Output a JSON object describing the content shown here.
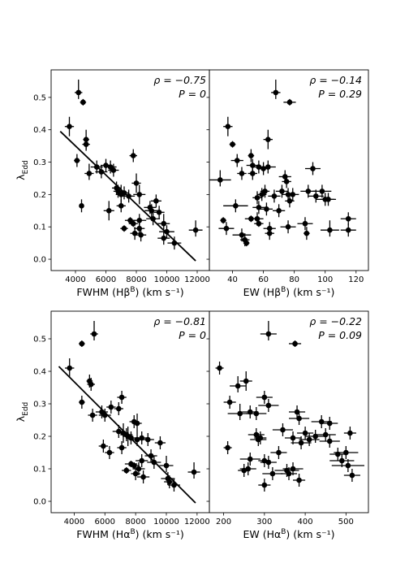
{
  "ylabel": "λ_Edd",
  "chart_data": [
    {
      "type": "scatter",
      "panel": "top-left",
      "xlabel": "FWHM (Hβ^B) (km s⁻¹)",
      "ylabel": "λ_Edd",
      "xlim": [
        2400,
        12800
      ],
      "ylim": [
        -0.035,
        0.585
      ],
      "xticks": [
        4000,
        6000,
        8000,
        10000,
        12000
      ],
      "yticks": [
        0.0,
        0.1,
        0.2,
        0.3,
        0.4,
        0.5
      ],
      "annotation": [
        "ρ = −0.75",
        "P = 0"
      ],
      "fit_line": [
        [
          3000,
          0.395
        ],
        [
          11900,
          -0.005
        ]
      ],
      "points": [
        [
          4200,
          0.515,
          250,
          0.02,
          0.04
        ],
        [
          4500,
          0.485,
          200,
          0.01,
          0.01
        ],
        [
          3600,
          0.41,
          300,
          0.03,
          0.03
        ],
        [
          4100,
          0.305,
          200,
          0.02,
          0.02
        ],
        [
          4700,
          0.37,
          200,
          0.03,
          0.03
        ],
        [
          4700,
          0.355,
          250,
          0.02,
          0.02
        ],
        [
          4900,
          0.265,
          300,
          0.02,
          0.03
        ],
        [
          4400,
          0.165,
          150,
          0.02,
          0.02
        ],
        [
          5400,
          0.285,
          400,
          0.02,
          0.02
        ],
        [
          5700,
          0.27,
          400,
          0.02,
          0.02
        ],
        [
          6000,
          0.29,
          350,
          0.02,
          0.02
        ],
        [
          6300,
          0.285,
          400,
          0.02,
          0.02
        ],
        [
          6500,
          0.275,
          350,
          0.02,
          0.02
        ],
        [
          6200,
          0.15,
          350,
          0.03,
          0.03
        ],
        [
          6700,
          0.22,
          300,
          0.02,
          0.02
        ],
        [
          6800,
          0.21,
          300,
          0.02,
          0.02
        ],
        [
          7000,
          0.2,
          350,
          0.03,
          0.03
        ],
        [
          7200,
          0.205,
          300,
          0.02,
          0.02
        ],
        [
          7500,
          0.195,
          400,
          0.02,
          0.02
        ],
        [
          7800,
          0.32,
          250,
          0.02,
          0.02
        ],
        [
          8000,
          0.235,
          300,
          0.03,
          0.03
        ],
        [
          8200,
          0.2,
          400,
          0.03,
          0.03
        ],
        [
          7000,
          0.165,
          300,
          0.02,
          0.02
        ],
        [
          7200,
          0.095,
          250,
          0.01,
          0.01
        ],
        [
          7600,
          0.12,
          350,
          0.01,
          0.01
        ],
        [
          7800,
          0.11,
          300,
          0.01,
          0.01
        ],
        [
          7900,
          0.08,
          300,
          0.02,
          0.02
        ],
        [
          8200,
          0.12,
          450,
          0.02,
          0.02
        ],
        [
          8200,
          0.095,
          350,
          0.02,
          0.02
        ],
        [
          8300,
          0.075,
          350,
          0.02,
          0.02
        ],
        [
          8900,
          0.16,
          400,
          0.02,
          0.02
        ],
        [
          9000,
          0.15,
          450,
          0.02,
          0.02
        ],
        [
          9300,
          0.18,
          350,
          0.02,
          0.02
        ],
        [
          9100,
          0.125,
          450,
          0.02,
          0.02
        ],
        [
          9500,
          0.145,
          350,
          0.02,
          0.02
        ],
        [
          9800,
          0.11,
          400,
          0.02,
          0.03
        ],
        [
          10000,
          0.085,
          500,
          0.02,
          0.02
        ],
        [
          9800,
          0.065,
          400,
          0.02,
          0.02
        ],
        [
          10500,
          0.05,
          450,
          0.02,
          0.02
        ],
        [
          11900,
          0.09,
          450,
          0.02,
          0.03
        ]
      ]
    },
    {
      "type": "scatter",
      "panel": "top-right",
      "xlabel": "EW (Hβ^B) (km s⁻¹)",
      "xlim": [
        25,
        128
      ],
      "ylim": [
        -0.035,
        0.585
      ],
      "xticks": [
        40,
        60,
        80,
        100,
        120
      ],
      "yticks": [
        0.0,
        0.1,
        0.2,
        0.3,
        0.4,
        0.5
      ],
      "annotation": [
        "ρ = −0.14",
        "P = 0.29"
      ],
      "points": [
        [
          68,
          0.515,
          3,
          0.02,
          0.04
        ],
        [
          77,
          0.485,
          4,
          0.01,
          0.01
        ],
        [
          37,
          0.41,
          3,
          0.03,
          0.03
        ],
        [
          40,
          0.355,
          2,
          0.01,
          0.01
        ],
        [
          43,
          0.305,
          4,
          0.02,
          0.02
        ],
        [
          32,
          0.245,
          7,
          0.02,
          0.03
        ],
        [
          46,
          0.265,
          3,
          0.02,
          0.02
        ],
        [
          42,
          0.165,
          8,
          0.02,
          0.02
        ],
        [
          34,
          0.12,
          2,
          0.01,
          0.01
        ],
        [
          36,
          0.095,
          5,
          0.02,
          0.02
        ],
        [
          46,
          0.075,
          6,
          0.02,
          0.02
        ],
        [
          48,
          0.06,
          3,
          0.02,
          0.02
        ],
        [
          49,
          0.05,
          2,
          0.01,
          0.01
        ],
        [
          52,
          0.32,
          2,
          0.02,
          0.02
        ],
        [
          53,
          0.29,
          4,
          0.02,
          0.02
        ],
        [
          53,
          0.265,
          3,
          0.02,
          0.02
        ],
        [
          57,
          0.285,
          4,
          0.02,
          0.02
        ],
        [
          60,
          0.28,
          4,
          0.02,
          0.02
        ],
        [
          63,
          0.285,
          5,
          0.02,
          0.02
        ],
        [
          63,
          0.37,
          3,
          0.03,
          0.03
        ],
        [
          56,
          0.19,
          3,
          0.02,
          0.02
        ],
        [
          57,
          0.16,
          4,
          0.02,
          0.02
        ],
        [
          59,
          0.2,
          3,
          0.02,
          0.02
        ],
        [
          61,
          0.21,
          3,
          0.02,
          0.02
        ],
        [
          62,
          0.155,
          4,
          0.02,
          0.02
        ],
        [
          56,
          0.125,
          4,
          0.02,
          0.02
        ],
        [
          52,
          0.125,
          4,
          0.01,
          0.01
        ],
        [
          57,
          0.11,
          3,
          0.01,
          0.01
        ],
        [
          64,
          0.095,
          4,
          0.02,
          0.02
        ],
        [
          64,
          0.08,
          3,
          0.02,
          0.02
        ],
        [
          67,
          0.195,
          4,
          0.02,
          0.02
        ],
        [
          70,
          0.15,
          4,
          0.02,
          0.02
        ],
        [
          72,
          0.21,
          4,
          0.02,
          0.02
        ],
        [
          74,
          0.255,
          4,
          0.02,
          0.02
        ],
        [
          75,
          0.24,
          3,
          0.02,
          0.02
        ],
        [
          76,
          0.2,
          4,
          0.02,
          0.02
        ],
        [
          77,
          0.18,
          3,
          0.02,
          0.02
        ],
        [
          79,
          0.2,
          4,
          0.02,
          0.02
        ],
        [
          76,
          0.1,
          5,
          0.02,
          0.02
        ],
        [
          87,
          0.11,
          5,
          0.02,
          0.02
        ],
        [
          88,
          0.08,
          2,
          0.02,
          0.02
        ],
        [
          89,
          0.21,
          5,
          0.02,
          0.02
        ],
        [
          92,
          0.28,
          5,
          0.02,
          0.02
        ],
        [
          94,
          0.195,
          5,
          0.02,
          0.02
        ],
        [
          98,
          0.21,
          6,
          0.02,
          0.02
        ],
        [
          100,
          0.185,
          6,
          0.02,
          0.02
        ],
        [
          102,
          0.185,
          5,
          0.02,
          0.02
        ],
        [
          103,
          0.09,
          6,
          0.02,
          0.03
        ],
        [
          115,
          0.125,
          5,
          0.02,
          0.02
        ],
        [
          115,
          0.09,
          5,
          0.02,
          0.02
        ]
      ]
    },
    {
      "type": "scatter",
      "panel": "bottom-left",
      "xlabel": "FWHM (Hα^B) (km s⁻¹)",
      "ylabel": "λ_Edd",
      "xlim": [
        2500,
        12800
      ],
      "ylim": [
        -0.035,
        0.585
      ],
      "xticks": [
        4000,
        6000,
        8000,
        10000,
        12000
      ],
      "yticks": [
        0.0,
        0.1,
        0.2,
        0.3,
        0.4,
        0.5
      ],
      "annotation": [
        "ρ = −0.81",
        "P = 0"
      ],
      "fit_line": [
        [
          3000,
          0.415
        ],
        [
          11900,
          -0.005
        ]
      ],
      "points": [
        [
          4500,
          0.485,
          200,
          0.01,
          0.01
        ],
        [
          5300,
          0.515,
          250,
          0.02,
          0.04
        ],
        [
          3700,
          0.41,
          300,
          0.03,
          0.03
        ],
        [
          4500,
          0.305,
          200,
          0.02,
          0.02
        ],
        [
          5000,
          0.37,
          200,
          0.02,
          0.02
        ],
        [
          5100,
          0.36,
          250,
          0.02,
          0.02
        ],
        [
          5200,
          0.265,
          300,
          0.02,
          0.02
        ],
        [
          5800,
          0.275,
          400,
          0.02,
          0.02
        ],
        [
          6000,
          0.265,
          400,
          0.02,
          0.02
        ],
        [
          6400,
          0.29,
          300,
          0.02,
          0.02
        ],
        [
          6900,
          0.285,
          300,
          0.02,
          0.02
        ],
        [
          7100,
          0.32,
          300,
          0.02,
          0.02
        ],
        [
          5900,
          0.17,
          300,
          0.02,
          0.02
        ],
        [
          6300,
          0.15,
          300,
          0.02,
          0.02
        ],
        [
          6900,
          0.215,
          400,
          0.02,
          0.02
        ],
        [
          7200,
          0.21,
          350,
          0.03,
          0.03
        ],
        [
          7400,
          0.205,
          400,
          0.02,
          0.02
        ],
        [
          7500,
          0.2,
          350,
          0.03,
          0.03
        ],
        [
          7700,
          0.195,
          350,
          0.02,
          0.02
        ],
        [
          7900,
          0.245,
          300,
          0.02,
          0.02
        ],
        [
          8100,
          0.24,
          300,
          0.03,
          0.03
        ],
        [
          8100,
          0.19,
          400,
          0.02,
          0.02
        ],
        [
          8400,
          0.195,
          350,
          0.02,
          0.02
        ],
        [
          8800,
          0.19,
          400,
          0.02,
          0.02
        ],
        [
          7100,
          0.165,
          300,
          0.02,
          0.02
        ],
        [
          7400,
          0.095,
          300,
          0.01,
          0.01
        ],
        [
          7700,
          0.115,
          400,
          0.01,
          0.01
        ],
        [
          7900,
          0.11,
          350,
          0.01,
          0.01
        ],
        [
          8000,
          0.085,
          300,
          0.02,
          0.02
        ],
        [
          8200,
          0.1,
          400,
          0.02,
          0.02
        ],
        [
          8400,
          0.125,
          400,
          0.02,
          0.02
        ],
        [
          8500,
          0.075,
          400,
          0.02,
          0.02
        ],
        [
          9000,
          0.14,
          400,
          0.02,
          0.02
        ],
        [
          9200,
          0.12,
          450,
          0.02,
          0.02
        ],
        [
          9600,
          0.18,
          350,
          0.02,
          0.02
        ],
        [
          10000,
          0.11,
          450,
          0.02,
          0.03
        ],
        [
          10100,
          0.07,
          450,
          0.02,
          0.02
        ],
        [
          10200,
          0.06,
          350,
          0.02,
          0.02
        ],
        [
          10500,
          0.05,
          400,
          0.02,
          0.02
        ],
        [
          11800,
          0.09,
          400,
          0.02,
          0.03
        ]
      ]
    },
    {
      "type": "scatter",
      "panel": "bottom-right",
      "xlabel": "EW (Hα^B) (km s⁻¹)",
      "xlim": [
        165,
        555
      ],
      "ylim": [
        -0.035,
        0.585
      ],
      "xticks": [
        200,
        300,
        400,
        500
      ],
      "yticks": [
        0.0,
        0.1,
        0.2,
        0.3,
        0.4,
        0.5
      ],
      "annotation": [
        "ρ = −0.22",
        "P = 0.09"
      ],
      "points": [
        [
          310,
          0.515,
          20,
          0.02,
          0.04
        ],
        [
          375,
          0.485,
          15,
          0.01,
          0.01
        ],
        [
          190,
          0.41,
          10,
          0.02,
          0.02
        ],
        [
          215,
          0.305,
          15,
          0.02,
          0.02
        ],
        [
          235,
          0.355,
          20,
          0.02,
          0.03
        ],
        [
          255,
          0.37,
          15,
          0.03,
          0.03
        ],
        [
          240,
          0.27,
          30,
          0.02,
          0.03
        ],
        [
          265,
          0.275,
          20,
          0.02,
          0.02
        ],
        [
          280,
          0.27,
          25,
          0.02,
          0.02
        ],
        [
          300,
          0.32,
          20,
          0.02,
          0.02
        ],
        [
          310,
          0.295,
          25,
          0.02,
          0.02
        ],
        [
          210,
          0.165,
          10,
          0.02,
          0.02
        ],
        [
          250,
          0.095,
          15,
          0.02,
          0.02
        ],
        [
          260,
          0.1,
          20,
          0.02,
          0.02
        ],
        [
          265,
          0.13,
          25,
          0.02,
          0.02
        ],
        [
          280,
          0.205,
          20,
          0.02,
          0.02
        ],
        [
          285,
          0.19,
          20,
          0.02,
          0.02
        ],
        [
          290,
          0.195,
          15,
          0.02,
          0.02
        ],
        [
          300,
          0.125,
          15,
          0.02,
          0.02
        ],
        [
          310,
          0.12,
          20,
          0.02,
          0.02
        ],
        [
          300,
          0.05,
          15,
          0.02,
          0.02
        ],
        [
          320,
          0.085,
          25,
          0.02,
          0.02
        ],
        [
          335,
          0.15,
          20,
          0.02,
          0.02
        ],
        [
          345,
          0.22,
          25,
          0.02,
          0.02
        ],
        [
          355,
          0.095,
          30,
          0.02,
          0.02
        ],
        [
          360,
          0.085,
          20,
          0.02,
          0.02
        ],
        [
          370,
          0.1,
          25,
          0.02,
          0.02
        ],
        [
          370,
          0.195,
          20,
          0.02,
          0.02
        ],
        [
          380,
          0.275,
          20,
          0.02,
          0.02
        ],
        [
          385,
          0.255,
          25,
          0.02,
          0.02
        ],
        [
          390,
          0.18,
          25,
          0.02,
          0.02
        ],
        [
          385,
          0.065,
          15,
          0.02,
          0.02
        ],
        [
          400,
          0.21,
          20,
          0.02,
          0.02
        ],
        [
          410,
          0.19,
          25,
          0.02,
          0.02
        ],
        [
          425,
          0.2,
          25,
          0.02,
          0.02
        ],
        [
          440,
          0.245,
          25,
          0.02,
          0.02
        ],
        [
          450,
          0.205,
          25,
          0.02,
          0.02
        ],
        [
          460,
          0.24,
          20,
          0.02,
          0.02
        ],
        [
          460,
          0.185,
          25,
          0.02,
          0.02
        ],
        [
          480,
          0.145,
          20,
          0.02,
          0.02
        ],
        [
          490,
          0.125,
          30,
          0.02,
          0.02
        ],
        [
          500,
          0.15,
          30,
          0.02,
          0.02
        ],
        [
          505,
          0.11,
          40,
          0.02,
          0.02
        ],
        [
          510,
          0.21,
          15,
          0.02,
          0.02
        ],
        [
          515,
          0.08,
          20,
          0.02,
          0.02
        ]
      ]
    }
  ]
}
